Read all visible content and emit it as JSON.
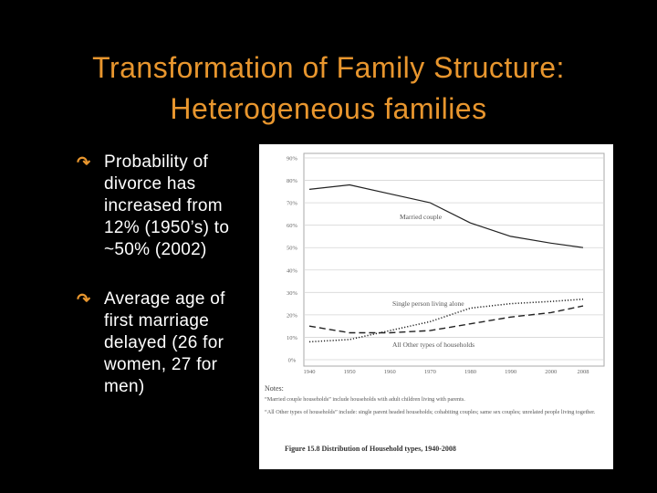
{
  "slide": {
    "title_line1": "Transformation of Family Structure:",
    "title_line2": "Heterogeneous families",
    "bullets": [
      {
        "text": "Probability of divorce has increased from 12% (1950’s) to ~50% (2002)"
      },
      {
        "text": "Average age of first marriage delayed (26 for women, 27 for men)"
      }
    ],
    "colors": {
      "title": "#e8962e",
      "bullet_marker": "#e8962e",
      "text": "#ffffff",
      "background": "#000000"
    },
    "bullet_icon": "curved-arrow-icon"
  },
  "chart_data": {
    "type": "line",
    "x": [
      1940,
      1950,
      1960,
      1970,
      1980,
      1990,
      2000,
      2008
    ],
    "xticklabels": [
      "1940",
      "1950",
      "1960",
      "1970",
      "1980",
      "1990",
      "2000",
      "2008"
    ],
    "yticklabels": [
      "0%",
      "10%",
      "20%",
      "30%",
      "40%",
      "50%",
      "60%",
      "70%",
      "80%",
      "90%"
    ],
    "ylim": [
      0,
      90
    ],
    "grid": "horizontal",
    "series": [
      {
        "name": "Married couple",
        "style": "solid",
        "values": [
          76,
          78,
          74,
          70,
          61,
          55,
          52,
          50
        ]
      },
      {
        "name": "Single person living alone",
        "style": "dotted",
        "values": [
          8,
          9,
          13,
          17,
          23,
          25,
          26,
          27
        ]
      },
      {
        "name": "All Other types of households",
        "style": "dashed",
        "values": [
          15,
          12,
          12,
          13,
          16,
          19,
          21,
          24
        ]
      }
    ],
    "notes_heading": "Notes:",
    "notes": [
      "“Married couple households” include households with adult children living with parents.",
      "“All Other types of households” include: single parent headed households; cohabiting couples; same sex couples; unrelated people living together."
    ],
    "caption": "Figure 15.8  Distribution of Household types, 1940-2008"
  }
}
